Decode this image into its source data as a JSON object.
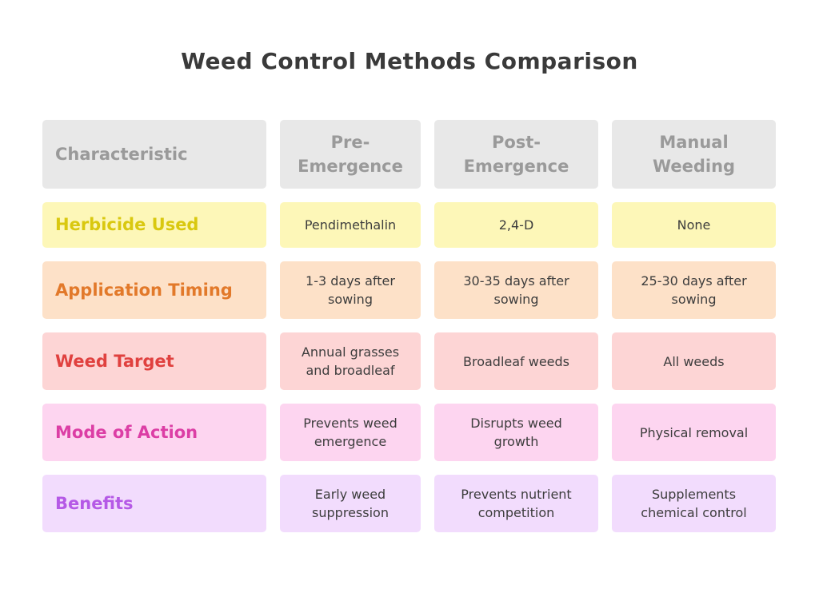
{
  "title": "Weed Control Methods Comparison",
  "headers": [
    "Characteristic",
    "Pre-\nEmergence",
    "Post-\nEmergence",
    "Manual\nWeeding"
  ],
  "rows": [
    {
      "label": "Herbicide Used",
      "cells": [
        "Pendimethalin",
        "2,4-D",
        "None"
      ],
      "bg": "#fdf7b8",
      "color": "#d9c80f"
    },
    {
      "label": "Application Timing",
      "cells": [
        "1-3 days after\nsowing",
        "30-35 days after\nsowing",
        "25-30 days after\nsowing"
      ],
      "bg": "#fde1c8",
      "color": "#e2792a"
    },
    {
      "label": "Weed Target",
      "cells": [
        "Annual grasses\nand broadleaf",
        "Broadleaf weeds",
        "All weeds"
      ],
      "bg": "#fdd5d5",
      "color": "#e0413f"
    },
    {
      "label": "Mode of Action",
      "cells": [
        "Prevents weed\nemergence",
        "Disrupts weed\ngrowth",
        "Physical removal"
      ],
      "bg": "#fdd5f0",
      "color": "#dc3ea5"
    },
    {
      "label": "Benefits",
      "cells": [
        "Early weed\nsuppression",
        "Prevents nutrient\ncompetition",
        "Supplements\nchemical control"
      ],
      "bg": "#f2dcfd",
      "color": "#b559e6"
    }
  ],
  "colors": {
    "header_bg": "#e8e8e8",
    "header_text": "#9a9a9a",
    "title": "#3a3a3a",
    "cell_text": "#3d3d3d"
  }
}
